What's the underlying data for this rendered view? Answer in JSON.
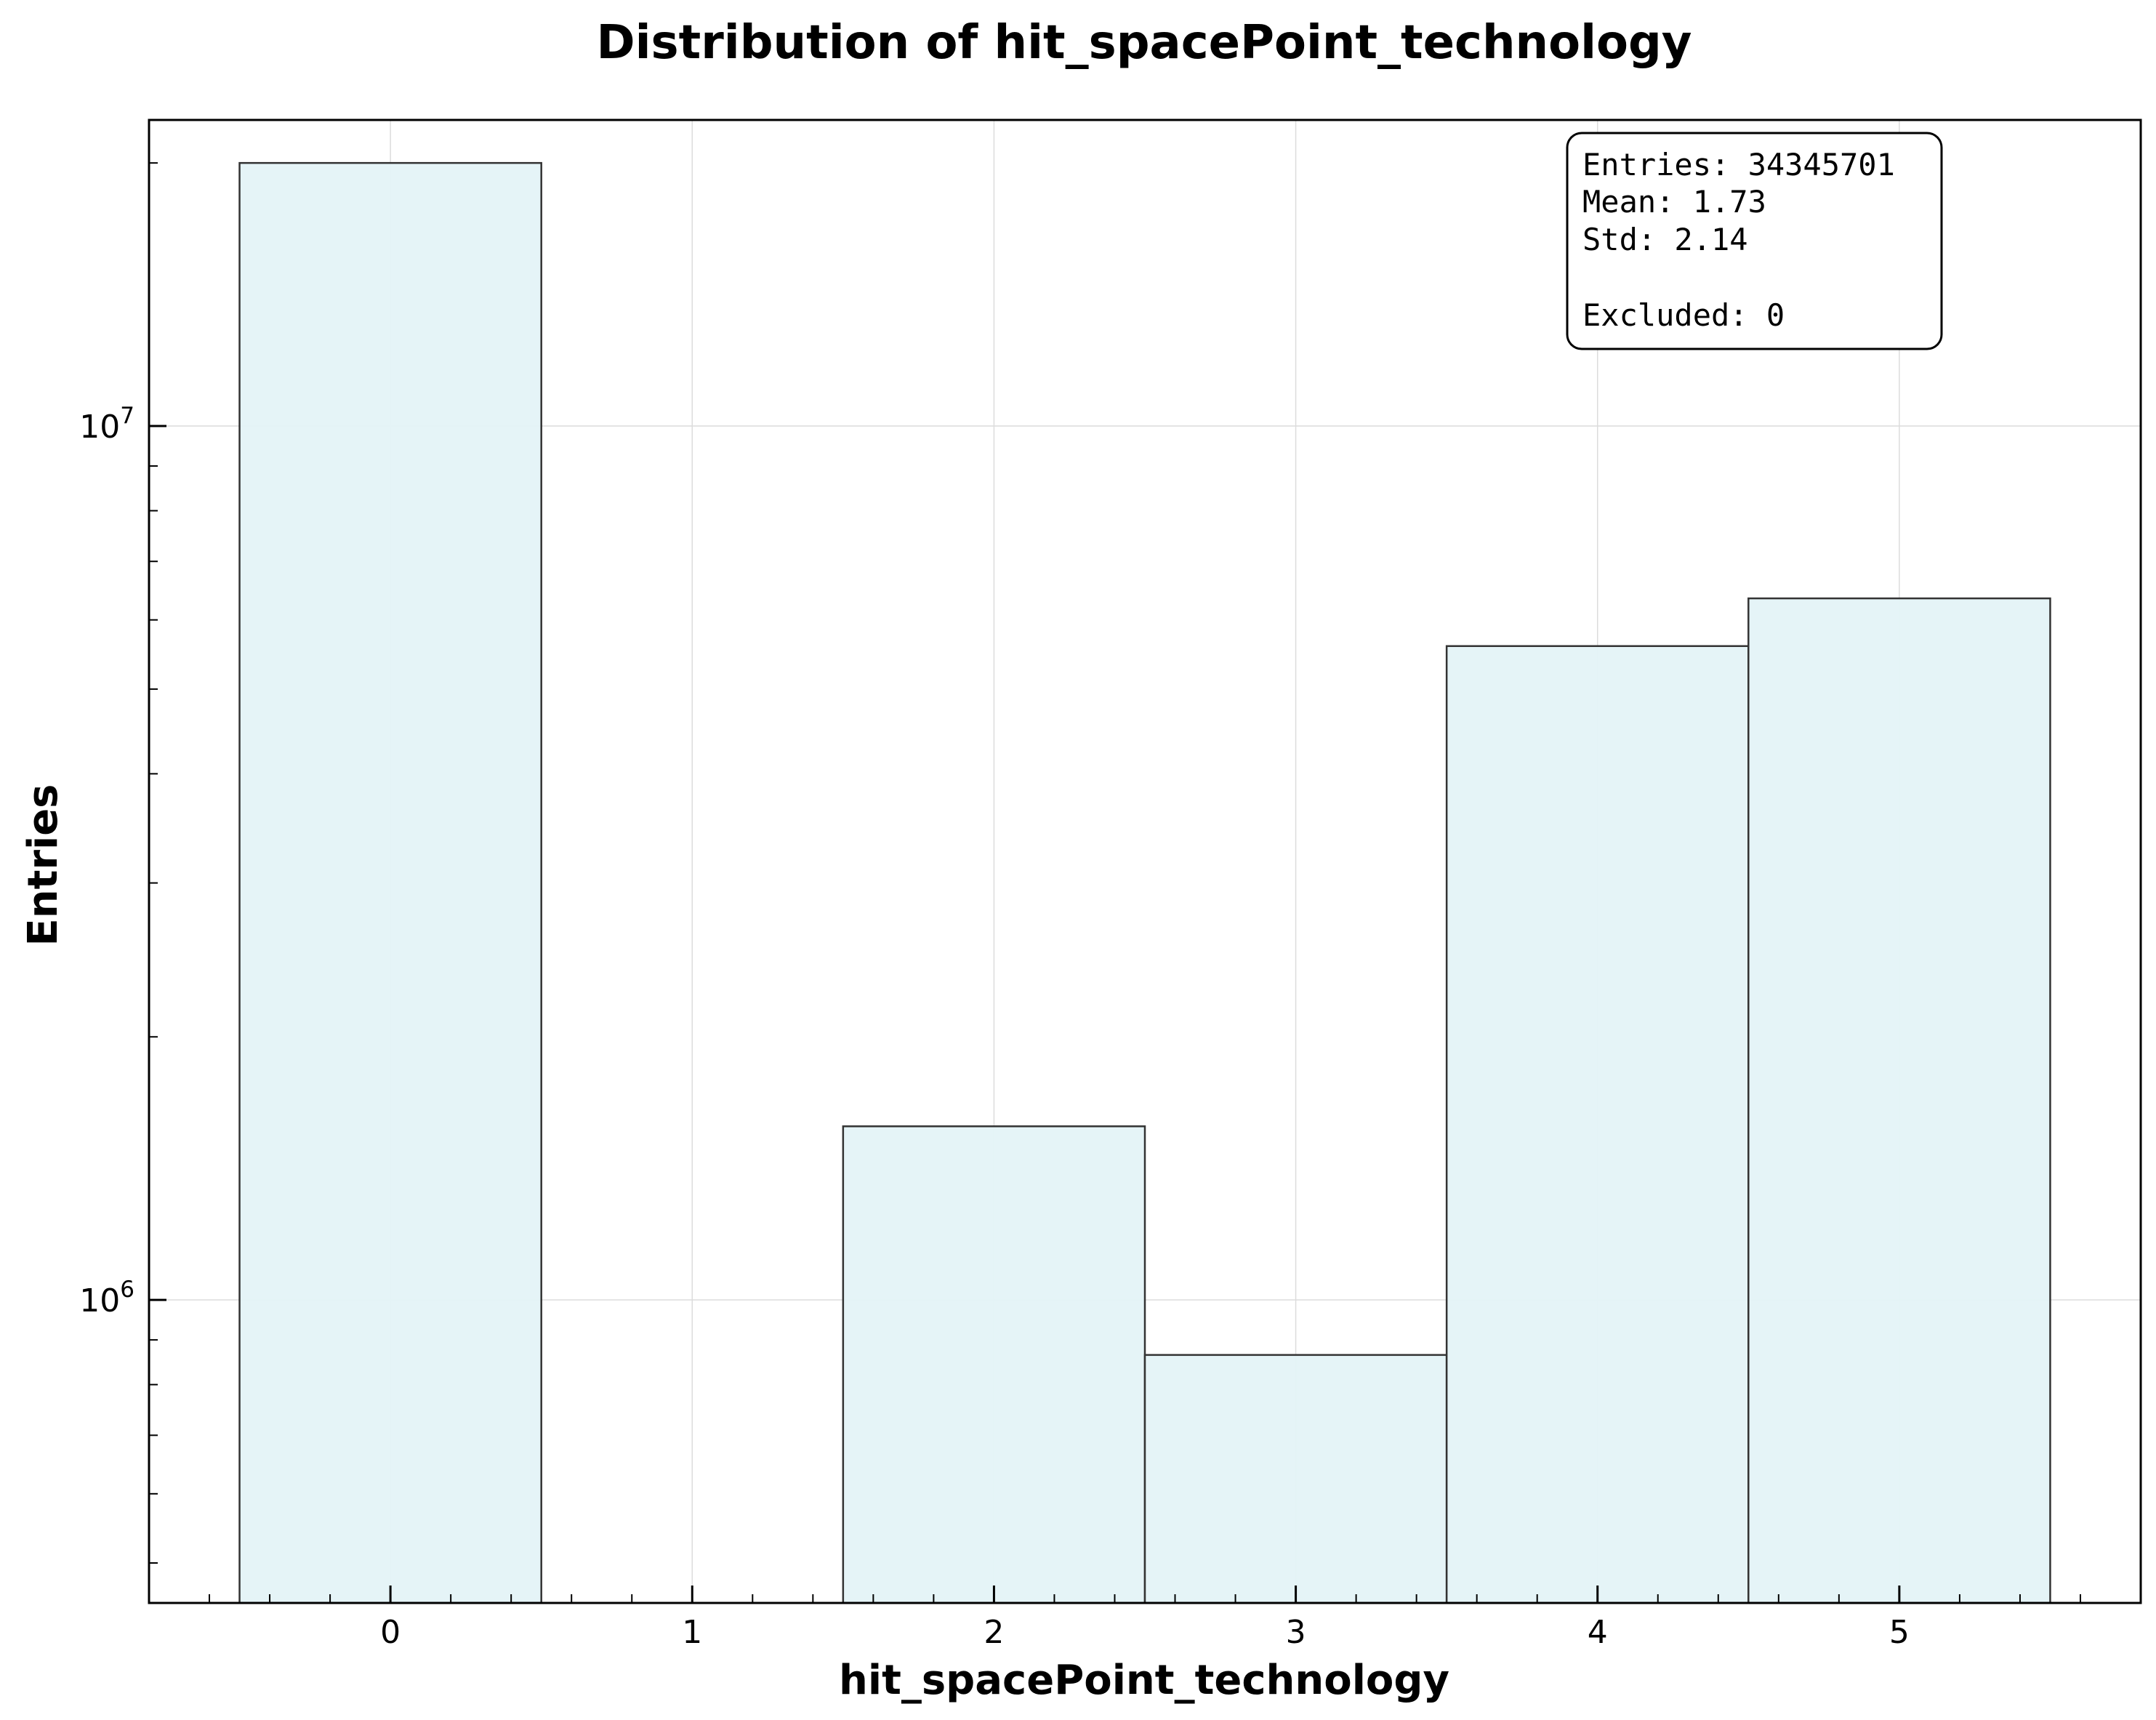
{
  "chart_data": {
    "type": "bar",
    "title": "Distribution of hit_spacePoint_technology",
    "xlabel": "hit_spacePoint_technology",
    "ylabel": "Entries",
    "y_scale": "log",
    "bins": [
      {
        "x": 0,
        "value": 20000000
      },
      {
        "x": 1,
        "value": 0
      },
      {
        "x": 2,
        "value": 1580000
      },
      {
        "x": 3,
        "value": 865000
      },
      {
        "x": 4,
        "value": 5600000
      },
      {
        "x": 5,
        "value": 6350000
      }
    ],
    "bin_width": 1,
    "xlim": [
      -0.8,
      5.8
    ],
    "ylim": [
      450000,
      22400000
    ],
    "x_ticks": [
      "0",
      "1",
      "2",
      "3",
      "4",
      "5"
    ],
    "y_ticks": [
      {
        "value": 1000000,
        "base": "10",
        "exp": "6"
      },
      {
        "value": 10000000,
        "base": "10",
        "exp": "7"
      }
    ],
    "grid": true,
    "bar_fill": "#e4f3f7",
    "bar_edge": "#333333",
    "stats_box": {
      "placement": "top-right",
      "lines": [
        "Entries: 34345701",
        "Mean: 1.73",
        "Std: 2.14",
        "",
        "Excluded: 0"
      ]
    }
  }
}
